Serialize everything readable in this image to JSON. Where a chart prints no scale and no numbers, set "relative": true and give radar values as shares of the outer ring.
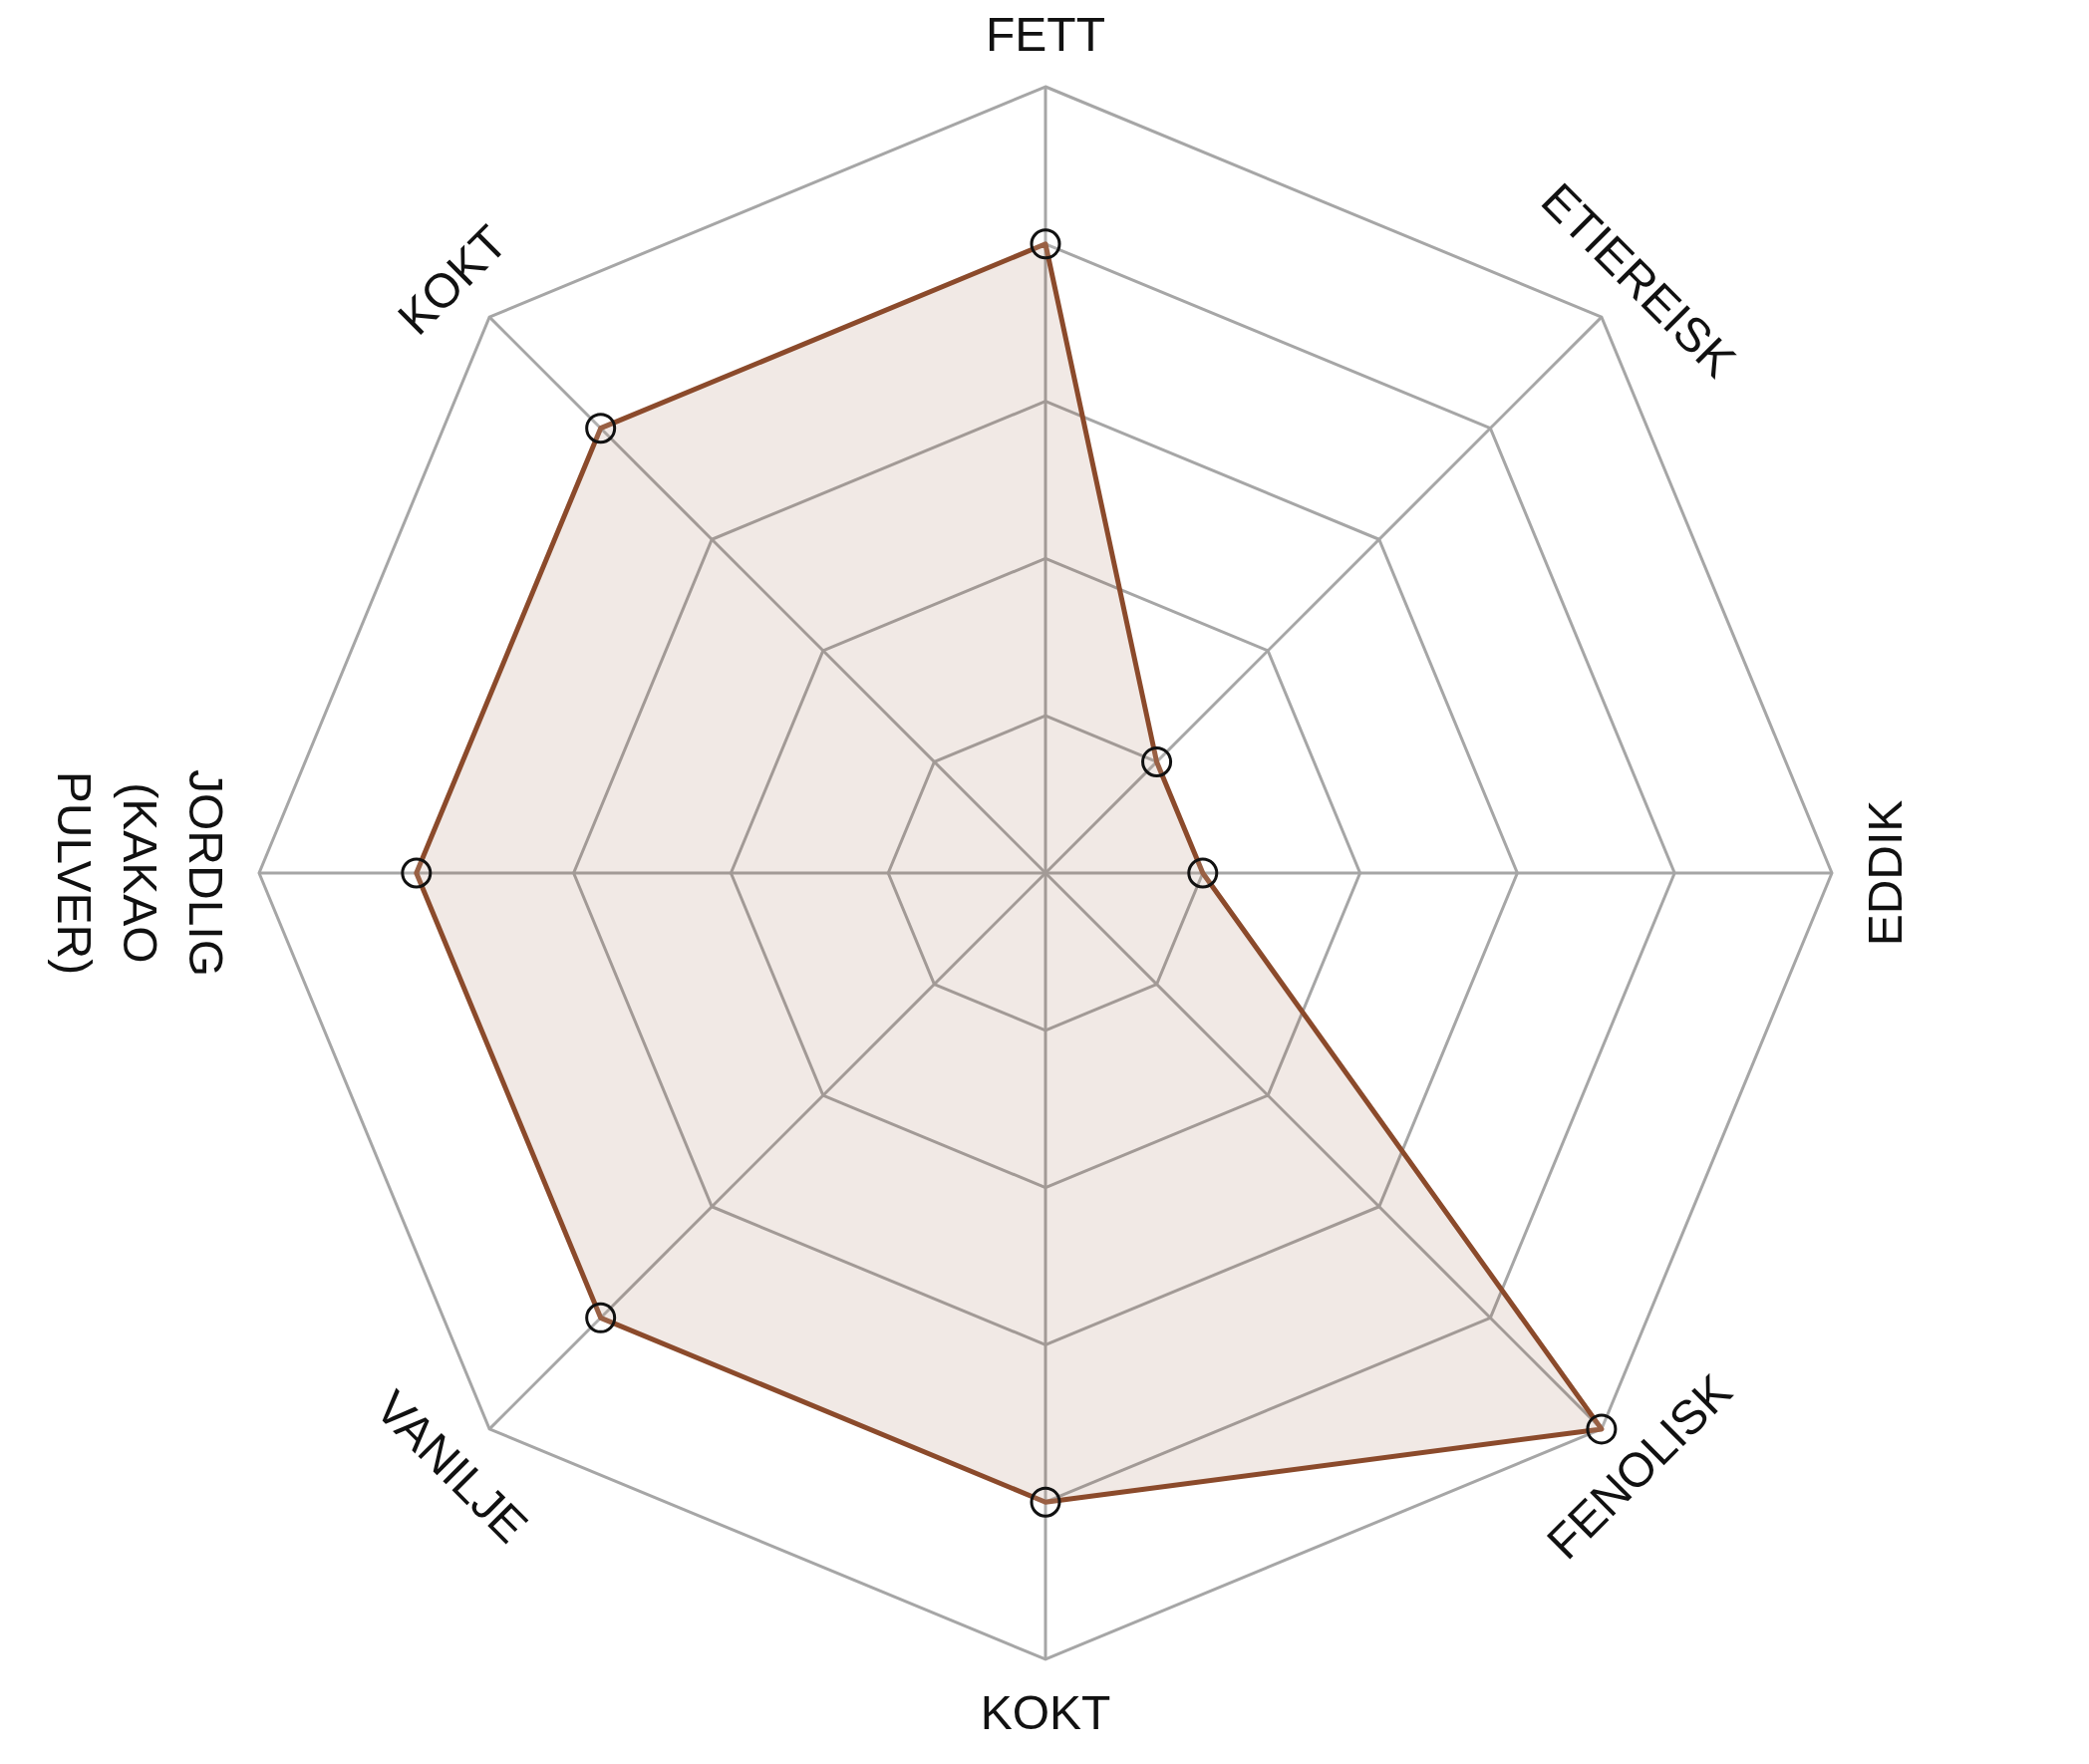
{
  "chart_data": {
    "type": "radar",
    "relative": true,
    "grid": true,
    "marker": "circle",
    "categories": [
      "FETT",
      "ETIEREISK",
      "EDDIK",
      "FENOLISK",
      "KOKT",
      "VANILJE",
      "JORDLIG (KAKAO PULVER)",
      "KOKT"
    ],
    "series": [
      {
        "color": "#8b4a2b",
        "values": [
          0.8,
          0.2,
          0.2,
          1.0,
          0.8,
          0.8,
          0.8,
          0.8
        ]
      }
    ]
  }
}
